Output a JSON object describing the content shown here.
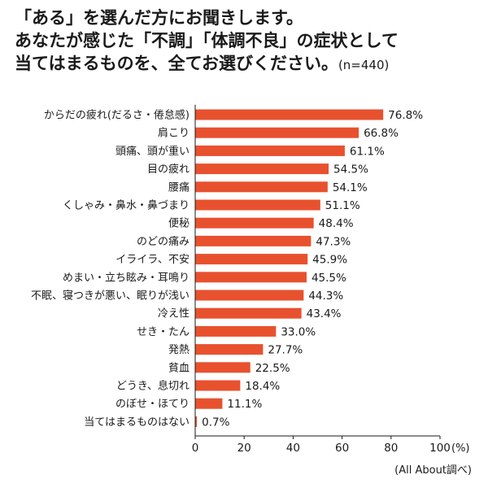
{
  "title": {
    "line1": "「ある」を選んだ方にお聞きします。",
    "line2": "あなたが感じた「不調」「体調不良」の症状として",
    "line3": "当てはまるものを、全てお選びください。",
    "n": "(n=440)"
  },
  "source": "(All About調べ)",
  "colors": {
    "bar": "#e8512e",
    "axis": "#1a1a1a",
    "text": "#1a1a1a"
  },
  "chart_data": {
    "type": "bar",
    "orientation": "horizontal",
    "categories": [
      "からだの疲れ(だるさ・倦怠感)",
      "肩こり",
      "頭痛、頭が重い",
      "目の疲れ",
      "腰痛",
      "くしゃみ・鼻水・鼻づまり",
      "便秘",
      "のどの痛み",
      "イライラ、不安",
      "めまい・立ち眩み・耳鳴り",
      "不眠、寝つきが悪い、眠りが浅い",
      "冷え性",
      "せき・たん",
      "発熱",
      "貧血",
      "どうき、息切れ",
      "のぼせ・ほてり",
      "当てはまるものはない"
    ],
    "values": [
      76.8,
      66.8,
      61.1,
      54.5,
      54.1,
      51.1,
      48.4,
      47.3,
      45.9,
      45.5,
      44.3,
      43.4,
      33.0,
      27.7,
      22.5,
      18.4,
      11.1,
      0.7
    ],
    "value_labels": [
      "76.8%",
      "66.8%",
      "61.1%",
      "54.5%",
      "54.1%",
      "51.1%",
      "48.4%",
      "47.3%",
      "45.9%",
      "45.5%",
      "44.3%",
      "43.4%",
      "33.0%",
      "27.7%",
      "22.5%",
      "18.4%",
      "11.1%",
      "0.7%"
    ],
    "xlim": [
      0,
      100
    ],
    "xticks": [
      0,
      20,
      40,
      60,
      80,
      100
    ],
    "xtick_labels": [
      "0",
      "20",
      "40",
      "60",
      "80",
      "100"
    ],
    "x_unit": "(%)",
    "grid": false,
    "legend": "none"
  }
}
